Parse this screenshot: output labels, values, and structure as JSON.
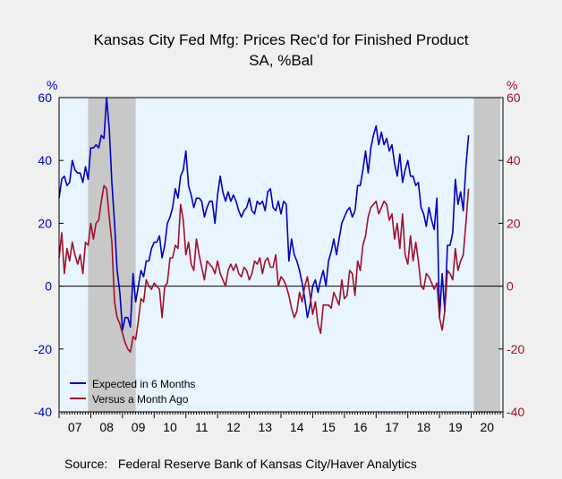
{
  "chart_data": {
    "type": "line",
    "title": "Kansas City Fed Mfg: Prices Rec'd for Finished Product",
    "subtitle": "SA, %Bal",
    "left_axis_unit": "%",
    "right_axis_unit": "%",
    "ylim": [
      -40,
      60
    ],
    "yticks": [
      60,
      40,
      20,
      0,
      -20,
      -40
    ],
    "xlim": [
      2007.0,
      2021.0
    ],
    "xtick_labels": [
      "07",
      "08",
      "09",
      "10",
      "11",
      "12",
      "13",
      "14",
      "15",
      "16",
      "17",
      "18",
      "19",
      "20"
    ],
    "x_start": 2007.0,
    "x_step": 0.08333,
    "recessions": [
      [
        2007.917,
        2009.417
      ],
      [
        2020.083,
        2020.917
      ]
    ],
    "legend": "bottom-left",
    "colors": {
      "expected": "#0000c0",
      "versus": "#a0102a",
      "recession": "#c8c8c8",
      "plot_bg": "#e8f4ff",
      "axis": "#000000"
    },
    "series": [
      {
        "name": "Expected in 6 Months",
        "values": [
          28,
          34,
          35,
          32,
          33,
          40,
          37,
          36,
          36,
          33,
          38,
          34,
          44,
          44,
          45,
          44,
          48,
          47,
          60,
          50,
          33,
          20,
          5,
          -2,
          -14,
          -10,
          -10,
          -13,
          4,
          -5,
          0,
          5,
          3,
          8,
          8,
          12,
          14,
          14,
          16,
          9,
          13,
          20,
          22,
          25,
          31,
          28,
          35,
          37,
          43,
          32,
          29,
          25,
          28,
          28,
          27,
          22,
          25,
          27,
          27,
          20,
          29,
          35,
          30,
          27,
          30,
          27,
          29,
          27,
          24,
          22,
          24,
          25,
          28,
          24,
          23,
          27,
          26,
          27,
          24,
          30,
          31,
          25,
          24,
          27,
          23,
          27,
          26,
          8,
          15,
          10,
          8,
          5,
          1,
          -4,
          -10,
          -6,
          0,
          2,
          -2,
          2,
          5,
          0,
          8,
          11,
          15,
          10,
          15,
          20,
          22,
          24,
          25,
          22,
          24,
          32,
          32,
          37,
          43,
          36,
          44,
          48,
          51,
          45,
          49,
          45,
          47,
          43,
          45,
          39,
          35,
          42,
          33,
          37,
          40,
          35,
          35,
          32,
          33,
          25,
          23,
          19,
          25,
          21,
          18,
          28,
          -10,
          4,
          -8,
          13,
          13,
          17,
          34,
          26,
          30,
          24,
          38,
          48
        ]
      },
      {
        "name": "Versus a Month Ago",
        "values": [
          9,
          17,
          4,
          12,
          8,
          14,
          10,
          7,
          10,
          4,
          14,
          13,
          20,
          15,
          20,
          21,
          27,
          32,
          31,
          22,
          14,
          -5,
          -10,
          -12,
          -15,
          -18,
          -20,
          -21,
          -16,
          -17,
          -11,
          -4,
          -5,
          2,
          0,
          -1,
          1,
          0,
          -1,
          -10,
          0,
          1,
          9,
          9,
          13,
          12,
          26,
          21,
          10,
          14,
          7,
          5,
          15,
          10,
          6,
          2,
          8,
          7,
          6,
          4,
          8,
          4,
          2,
          0,
          5,
          7,
          5,
          7,
          4,
          3,
          6,
          5,
          2,
          4,
          8,
          7,
          9,
          4,
          8,
          9,
          6,
          6,
          10,
          0,
          3,
          2,
          0,
          -3,
          -7,
          -10,
          -8,
          -2,
          -5,
          0,
          3,
          -3,
          -9,
          -5,
          -12,
          -15,
          -6,
          -6,
          -6,
          -7,
          -2,
          -4,
          -6,
          2,
          -4,
          -3,
          5,
          4,
          -3,
          8,
          5,
          13,
          16,
          22,
          25,
          26,
          27,
          23,
          25,
          27,
          26,
          21,
          23,
          15,
          20,
          12,
          23,
          10,
          7,
          16,
          8,
          14,
          8,
          0,
          -1,
          4,
          3,
          1,
          -1,
          1,
          -10,
          -14,
          -8,
          5,
          4,
          2,
          12,
          5,
          8,
          10,
          20,
          31
        ]
      }
    ],
    "source": "Source:   Federal Reserve Bank of Kansas City/Haver Analytics"
  }
}
